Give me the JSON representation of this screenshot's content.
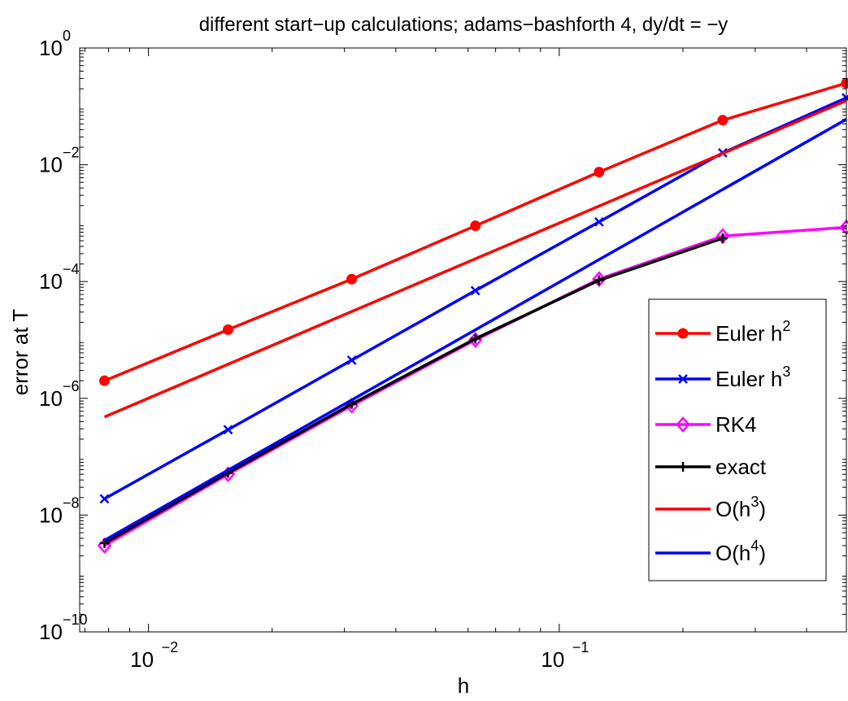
{
  "chart_data": {
    "type": "line",
    "title": "different start−up calculations; adams−bashforth 4, dy/dt = −y",
    "xlabel": "h",
    "ylabel": "error at T",
    "xscale": "log",
    "yscale": "log",
    "xlim": [
      0.0068,
      0.5
    ],
    "ylim": [
      1e-10,
      1
    ],
    "grid": false,
    "legend_position": "right",
    "x_ticks": [
      {
        "value": 0.01,
        "base": "10",
        "exp": "−2"
      },
      {
        "value": 0.1,
        "base": "10",
        "exp": "−1"
      }
    ],
    "y_ticks": [
      {
        "value": 1,
        "base": "10",
        "exp": "0"
      },
      {
        "value": 0.01,
        "base": "10",
        "exp": "−2"
      },
      {
        "value": 0.0001,
        "base": "10",
        "exp": "−4"
      },
      {
        "value": 1e-06,
        "base": "10",
        "exp": "−6"
      },
      {
        "value": 1e-08,
        "base": "10",
        "exp": "−8"
      },
      {
        "value": 1e-10,
        "base": "10",
        "exp": "−10"
      }
    ],
    "x": [
      0.0078125,
      0.015625,
      0.03125,
      0.0625,
      0.125,
      0.25,
      0.5
    ],
    "series": [
      {
        "name": "Euler h",
        "name_sup": "2",
        "color": "#ff0000",
        "marker": "dot",
        "values": [
          2e-06,
          1.5e-05,
          0.00011,
          0.0009,
          0.0075,
          0.058,
          0.25
        ]
      },
      {
        "name": "Euler h",
        "name_sup": "3",
        "color": "#0000ff",
        "marker": "x",
        "values": [
          1.9e-08,
          2.9e-07,
          4.5e-06,
          7e-05,
          0.00105,
          0.016,
          0.14
        ]
      },
      {
        "name": "RK4",
        "color": "#ff00ff",
        "marker": "diamond",
        "values": [
          3e-09,
          5e-08,
          7.5e-07,
          1e-05,
          0.00011,
          0.0006,
          0.00085
        ]
      },
      {
        "name": "exact",
        "color": "#000000",
        "marker": "plus",
        "x": [
          0.0078125,
          0.015625,
          0.03125,
          0.0625,
          0.125,
          0.25
        ],
        "values": [
          3.3e-09,
          5.3e-08,
          8e-07,
          1.05e-05,
          0.000105,
          0.00055
        ]
      },
      {
        "name": "O(h",
        "name_sup": "3",
        "name_suffix": ")",
        "color": "#ff0000",
        "marker": "none",
        "x": [
          0.0078125,
          0.5
        ],
        "values": [
          4.8e-07,
          0.125
        ]
      },
      {
        "name": "O(h",
        "name_sup": "4",
        "name_suffix": ")",
        "color": "#0000ff",
        "marker": "none",
        "x": [
          0.0078125,
          0.5
        ],
        "values": [
          3.7e-09,
          0.06
        ]
      }
    ]
  }
}
